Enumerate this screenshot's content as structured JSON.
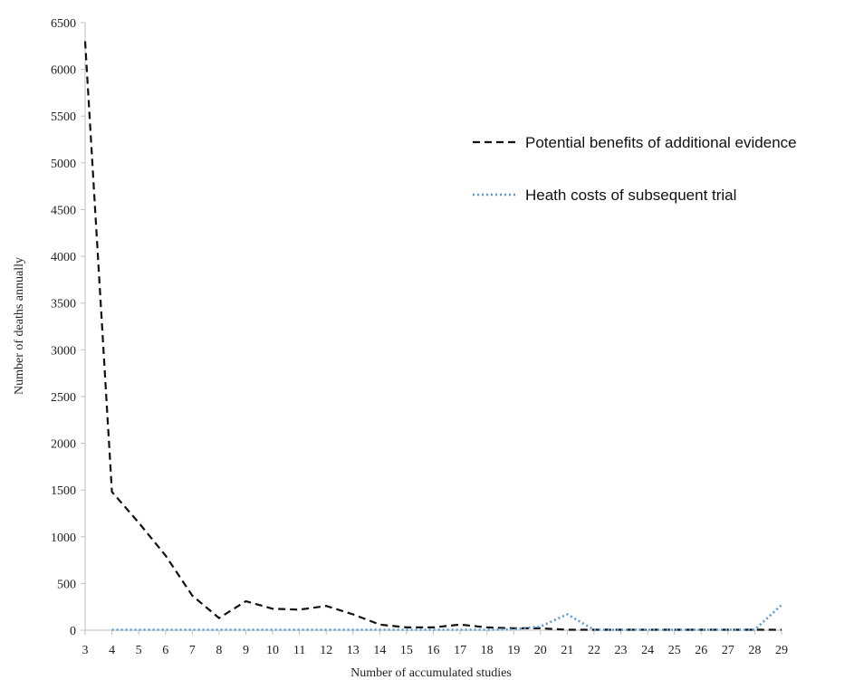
{
  "chart_data": {
    "type": "line",
    "title": "",
    "xlabel": "Number of accumulated studies",
    "ylabel": "Number of deaths annually",
    "categories": [
      "3",
      "4",
      "5",
      "6",
      "7",
      "8",
      "9",
      "10",
      "11",
      "12",
      "13",
      "14",
      "15",
      "16",
      "17",
      "18",
      "19",
      "20",
      "21",
      "22",
      "23",
      "24",
      "25",
      "26",
      "27",
      "28",
      "29"
    ],
    "ylim": [
      0,
      6500
    ],
    "yticks": [
      0,
      500,
      1000,
      1500,
      2000,
      2500,
      3000,
      3500,
      4000,
      4500,
      5000,
      5500,
      6000,
      6500
    ],
    "grid": false,
    "legend_position": "top-right",
    "series": [
      {
        "name": "Potential benefits of additional evidence",
        "style": "dashed",
        "color": "#111111",
        "values": [
          6300,
          1480,
          1150,
          800,
          370,
          130,
          310,
          230,
          220,
          260,
          170,
          60,
          30,
          30,
          60,
          30,
          20,
          20,
          5,
          5,
          5,
          5,
          5,
          5,
          5,
          5,
          5
        ]
      },
      {
        "name": "Heath costs of subsequent trial",
        "style": "dotted",
        "color": "#5b9bd5",
        "values": [
          null,
          5,
          5,
          5,
          5,
          5,
          5,
          5,
          5,
          5,
          5,
          5,
          5,
          5,
          5,
          5,
          10,
          40,
          170,
          5,
          5,
          5,
          5,
          5,
          5,
          5,
          270
        ]
      }
    ]
  }
}
